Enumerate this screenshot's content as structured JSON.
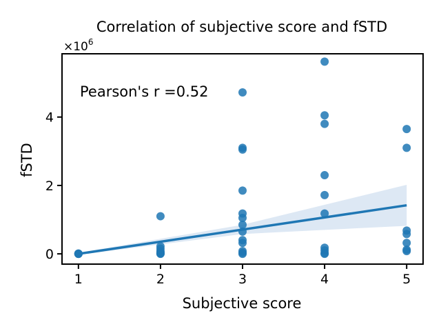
{
  "chart_data": {
    "type": "scatter",
    "title": "Correlation of subjective score and fSTD",
    "xlabel": "Subjective score",
    "ylabel": "fSTD",
    "y_multiplier_label": "×10",
    "y_multiplier_exponent": "6",
    "xlim": [
      0.8,
      5.2
    ],
    "ylim": [
      -0.3,
      5.85
    ],
    "x_ticks": [
      1,
      2,
      3,
      4,
      5
    ],
    "x_tick_labels": [
      "1",
      "2",
      "3",
      "4",
      "5"
    ],
    "y_ticks": [
      0,
      2,
      4
    ],
    "y_tick_labels": [
      "0",
      "2",
      "4"
    ],
    "annotation": "Pearson's r =0.52",
    "grid": false,
    "point_color": "#1f77b4",
    "ci_color": "#c6d9ec",
    "points": [
      {
        "x": 1,
        "y": 0.0
      },
      {
        "x": 1,
        "y": 0.0
      },
      {
        "x": 1,
        "y": 0.01
      },
      {
        "x": 1,
        "y": 0.0
      },
      {
        "x": 2,
        "y": 1.1
      },
      {
        "x": 2,
        "y": 0.22
      },
      {
        "x": 2,
        "y": 0.15
      },
      {
        "x": 2,
        "y": 0.08
      },
      {
        "x": 2,
        "y": 0.04
      },
      {
        "x": 2,
        "y": 0.02
      },
      {
        "x": 2,
        "y": 0.01
      },
      {
        "x": 2,
        "y": 0.0
      },
      {
        "x": 3,
        "y": 4.72
      },
      {
        "x": 3,
        "y": 3.1
      },
      {
        "x": 3,
        "y": 3.05
      },
      {
        "x": 3,
        "y": 1.85
      },
      {
        "x": 3,
        "y": 1.18
      },
      {
        "x": 3,
        "y": 1.05
      },
      {
        "x": 3,
        "y": 0.85
      },
      {
        "x": 3,
        "y": 0.65
      },
      {
        "x": 3,
        "y": 0.4
      },
      {
        "x": 3,
        "y": 0.32
      },
      {
        "x": 3,
        "y": 0.08
      },
      {
        "x": 3,
        "y": 0.03
      },
      {
        "x": 3,
        "y": 0.0
      },
      {
        "x": 4,
        "y": 5.62
      },
      {
        "x": 4,
        "y": 4.05
      },
      {
        "x": 4,
        "y": 3.8
      },
      {
        "x": 4,
        "y": 2.3
      },
      {
        "x": 4,
        "y": 1.72
      },
      {
        "x": 4,
        "y": 1.18
      },
      {
        "x": 4,
        "y": 0.18
      },
      {
        "x": 4,
        "y": 0.1
      },
      {
        "x": 4,
        "y": 0.02
      },
      {
        "x": 4,
        "y": 0.0
      },
      {
        "x": 5,
        "y": 3.65
      },
      {
        "x": 5,
        "y": 3.1
      },
      {
        "x": 5,
        "y": 0.68
      },
      {
        "x": 5,
        "y": 0.58
      },
      {
        "x": 5,
        "y": 0.32
      },
      {
        "x": 5,
        "y": 0.12
      },
      {
        "x": 5,
        "y": 0.08
      }
    ],
    "regression": {
      "x": [
        1,
        5
      ],
      "y": [
        0.0,
        1.42
      ],
      "ci_lower": [
        -0.03,
        0.82
      ],
      "ci_upper": [
        0.03,
        2.02
      ],
      "ci_mid_x": 3,
      "ci_mid_lower": [
        0.58
      ],
      "ci_mid_upper": [
        0.85
      ]
    }
  }
}
